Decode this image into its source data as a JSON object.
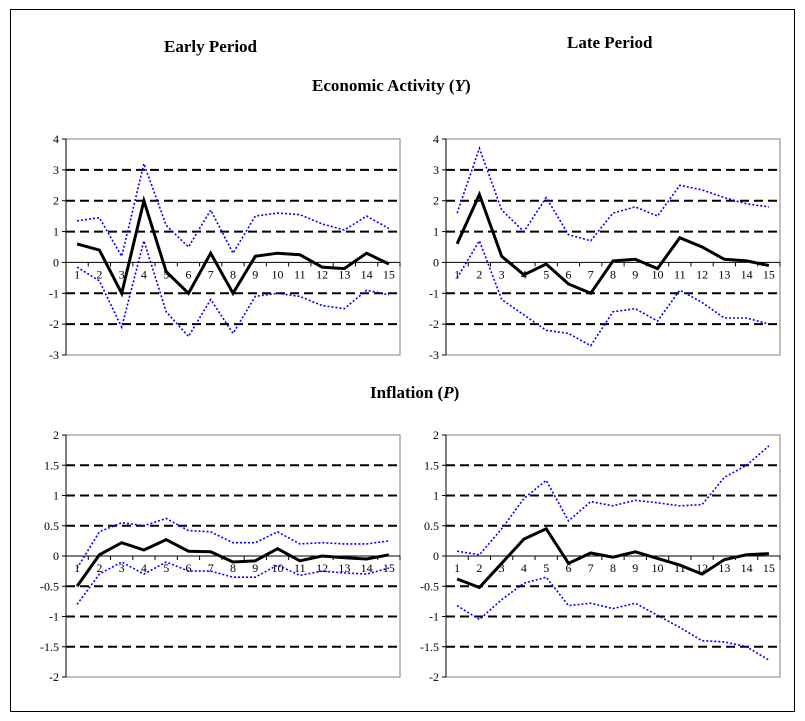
{
  "headings": {
    "left_column": "Early Period",
    "right_column": "Late Period",
    "row1": {
      "text": "Economic Activity (",
      "var": "Y",
      "close": ")"
    },
    "row2": {
      "text": "Inflation (",
      "var": "P",
      "close": ")"
    }
  },
  "colors": {
    "estimate": "#000000",
    "band": "#0000ff",
    "gridline": "#000000"
  },
  "chart_data": [
    {
      "id": "early-y",
      "type": "line",
      "x": [
        1,
        2,
        3,
        4,
        5,
        6,
        7,
        8,
        9,
        10,
        11,
        12,
        13,
        14,
        15
      ],
      "x_tick_labels": [
        "1",
        "2",
        "3",
        "4",
        "5",
        "6",
        "7",
        "8",
        "9",
        "10",
        "11",
        "12",
        "13",
        "14",
        "15"
      ],
      "ylim": [
        -3,
        4
      ],
      "y_ticks": [
        -3,
        -2,
        -1,
        0,
        1,
        2,
        3,
        4
      ],
      "y_tick_labels": [
        "-3",
        "-2",
        "-1",
        "0",
        "1",
        "2",
        "3",
        "4"
      ],
      "dashed_gridlines": [
        -2,
        -1,
        1,
        2,
        3
      ],
      "series": [
        {
          "role": "estimate",
          "values": [
            0.6,
            0.4,
            -1.0,
            2.0,
            -0.3,
            -1.0,
            0.3,
            -1.0,
            0.2,
            0.3,
            0.25,
            -0.15,
            -0.2,
            0.3,
            -0.05
          ]
        },
        {
          "role": "upper",
          "values": [
            1.35,
            1.45,
            0.2,
            3.2,
            1.2,
            0.5,
            1.7,
            0.3,
            1.5,
            1.6,
            1.55,
            1.25,
            1.05,
            1.5,
            1.1
          ]
        },
        {
          "role": "lower",
          "values": [
            -0.15,
            -0.6,
            -2.1,
            0.7,
            -1.6,
            -2.4,
            -1.2,
            -2.3,
            -1.1,
            -1.0,
            -1.1,
            -1.4,
            -1.5,
            -0.9,
            -1.05
          ]
        }
      ]
    },
    {
      "id": "late-y",
      "type": "line",
      "x": [
        1,
        2,
        3,
        4,
        5,
        6,
        7,
        8,
        9,
        10,
        11,
        12,
        13,
        14,
        15
      ],
      "x_tick_labels": [
        "1",
        "2",
        "3",
        "4",
        "5",
        "6",
        "7",
        "8",
        "9",
        "10",
        "11",
        "12",
        "13",
        "14",
        "15"
      ],
      "ylim": [
        -3,
        4
      ],
      "y_ticks": [
        -3,
        -2,
        -1,
        0,
        1,
        2,
        3,
        4
      ],
      "y_tick_labels": [
        "-3",
        "-2",
        "-1",
        "0",
        "1",
        "2",
        "3",
        "4"
      ],
      "dashed_gridlines": [
        -2,
        -1,
        1,
        2,
        3
      ],
      "series": [
        {
          "role": "estimate",
          "values": [
            0.6,
            2.2,
            0.2,
            -0.4,
            -0.05,
            -0.7,
            -1.0,
            0.05,
            0.1,
            -0.2,
            0.8,
            0.5,
            0.1,
            0.05,
            -0.1
          ]
        },
        {
          "role": "upper",
          "values": [
            1.6,
            3.7,
            1.7,
            1.0,
            2.1,
            0.9,
            0.7,
            1.6,
            1.8,
            1.5,
            2.5,
            2.35,
            2.1,
            1.9,
            1.8
          ]
        },
        {
          "role": "lower",
          "values": [
            -0.5,
            0.7,
            -1.2,
            -1.7,
            -2.2,
            -2.3,
            -2.7,
            -1.6,
            -1.5,
            -1.9,
            -0.9,
            -1.3,
            -1.8,
            -1.8,
            -2.0
          ]
        }
      ]
    },
    {
      "id": "early-p",
      "type": "line",
      "x": [
        1,
        2,
        3,
        4,
        5,
        6,
        7,
        8,
        9,
        10,
        11,
        12,
        13,
        14,
        15
      ],
      "x_tick_labels": [
        "1",
        "2",
        "3",
        "4",
        "5",
        "6",
        "7",
        "8",
        "9",
        "10",
        "11",
        "12",
        "13",
        "14",
        "15"
      ],
      "ylim": [
        -2,
        2
      ],
      "y_ticks": [
        -2,
        -1.5,
        -1,
        -0.5,
        0,
        0.5,
        1,
        1.5,
        2
      ],
      "y_tick_labels": [
        "-2",
        "-1.5",
        "-1",
        "-0.5",
        "0",
        "0.5",
        "1",
        "1.5",
        "2"
      ],
      "dashed_gridlines": [
        -1.5,
        -1,
        -0.5,
        0.5,
        1,
        1.5
      ],
      "series": [
        {
          "role": "estimate",
          "values": [
            -0.5,
            0.02,
            0.22,
            0.1,
            0.27,
            0.08,
            0.07,
            -0.1,
            -0.08,
            0.12,
            -0.08,
            0.0,
            -0.03,
            -0.05,
            0.02
          ]
        },
        {
          "role": "upper",
          "values": [
            -0.2,
            0.4,
            0.55,
            0.5,
            0.62,
            0.42,
            0.4,
            0.22,
            0.22,
            0.4,
            0.2,
            0.22,
            0.2,
            0.2,
            0.25
          ]
        },
        {
          "role": "lower",
          "values": [
            -0.8,
            -0.3,
            -0.1,
            -0.3,
            -0.1,
            -0.25,
            -0.25,
            -0.35,
            -0.35,
            -0.15,
            -0.32,
            -0.25,
            -0.28,
            -0.3,
            -0.2
          ]
        }
      ]
    },
    {
      "id": "late-p",
      "type": "line",
      "x": [
        1,
        2,
        3,
        4,
        5,
        6,
        7,
        8,
        9,
        10,
        11,
        12,
        13,
        14,
        15
      ],
      "x_tick_labels": [
        "1",
        "2",
        "3",
        "4",
        "5",
        "6",
        "7",
        "8",
        "9",
        "10",
        "11",
        "12",
        "13",
        "14",
        "15"
      ],
      "ylim": [
        -2,
        2
      ],
      "y_ticks": [
        -2,
        -1.5,
        -1,
        -0.5,
        0,
        0.5,
        1,
        1.5,
        2
      ],
      "y_tick_labels": [
        "-2",
        "-1.5",
        "-1",
        "-0.5",
        "0",
        "0.5",
        "1",
        "1.5",
        "2"
      ],
      "dashed_gridlines": [
        -1.5,
        -1,
        -0.5,
        0.5,
        1,
        1.5
      ],
      "series": [
        {
          "role": "estimate",
          "values": [
            -0.38,
            -0.52,
            -0.12,
            0.28,
            0.45,
            -0.12,
            0.05,
            -0.02,
            0.07,
            -0.04,
            -0.15,
            -0.3,
            -0.06,
            0.02,
            0.04
          ]
        },
        {
          "role": "upper",
          "values": [
            0.08,
            0.02,
            0.45,
            0.95,
            1.25,
            0.58,
            0.9,
            0.83,
            0.92,
            0.88,
            0.83,
            0.85,
            1.3,
            1.5,
            1.82
          ]
        },
        {
          "role": "lower",
          "values": [
            -0.82,
            -1.05,
            -0.72,
            -0.45,
            -0.35,
            -0.82,
            -0.78,
            -0.87,
            -0.78,
            -0.98,
            -1.18,
            -1.4,
            -1.42,
            -1.5,
            -1.72
          ]
        }
      ]
    }
  ]
}
